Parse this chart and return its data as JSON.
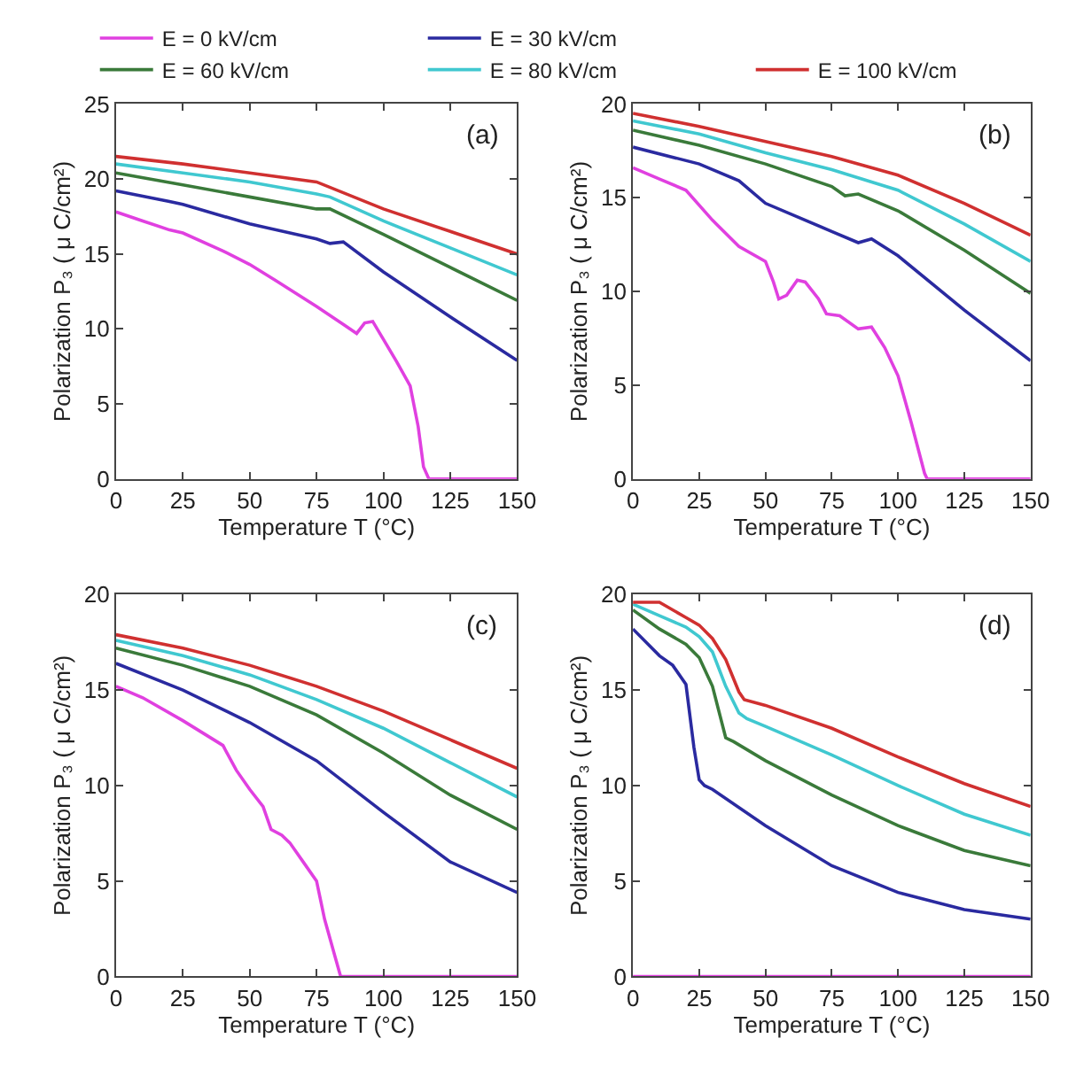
{
  "chart_data": [
    {
      "type": "line",
      "annotations": [
        "(a)"
      ],
      "xlabel": "Temperature T (°C)",
      "ylabel": "Polarization P₃ ( μ C/cm²)",
      "xlim": [
        0,
        150
      ],
      "xticks": [
        0,
        25,
        50,
        75,
        100,
        125,
        150
      ],
      "ylim": [
        0,
        25
      ],
      "yticks": [
        0,
        5,
        10,
        15,
        20,
        25
      ],
      "legend": "top",
      "marker": "none",
      "line_style": "solid",
      "series": [
        {
          "name": "E = 0 kV/cm",
          "color": "#e040e0",
          "x": [
            0,
            10,
            20,
            25,
            40,
            50,
            60,
            75,
            85,
            90,
            93,
            96,
            100,
            105,
            110,
            113,
            115,
            117,
            150
          ],
          "values": [
            17.8,
            17.2,
            16.6,
            16.4,
            15.2,
            14.3,
            13.2,
            11.5,
            10.3,
            9.7,
            10.4,
            10.5,
            9.3,
            7.8,
            6.2,
            3.5,
            0.8,
            0,
            0
          ]
        },
        {
          "name": "E = 30 kV/cm",
          "color": "#2a2aa0",
          "x": [
            0,
            20,
            25,
            50,
            75,
            80,
            85,
            100,
            125,
            150
          ],
          "values": [
            19.2,
            18.5,
            18.3,
            17.0,
            16.0,
            15.7,
            15.8,
            13.8,
            10.8,
            7.9
          ]
        },
        {
          "name": "E = 60 kV/cm",
          "color": "#3a7a3a",
          "x": [
            0,
            25,
            50,
            75,
            80,
            100,
            125,
            150
          ],
          "values": [
            20.4,
            19.6,
            18.8,
            18.0,
            18.0,
            16.3,
            14.1,
            11.9
          ]
        },
        {
          "name": "E = 80 kV/cm",
          "color": "#40c8d0",
          "x": [
            0,
            25,
            50,
            75,
            80,
            100,
            125,
            150
          ],
          "values": [
            21.0,
            20.4,
            19.8,
            19.0,
            18.8,
            17.2,
            15.4,
            13.6
          ]
        },
        {
          "name": "E = 100 kV/cm",
          "color": "#d03030",
          "x": [
            0,
            25,
            50,
            75,
            100,
            125,
            150
          ],
          "values": [
            21.5,
            21.0,
            20.4,
            19.8,
            18.0,
            16.5,
            15.0
          ]
        }
      ]
    },
    {
      "type": "line",
      "annotations": [
        "(b)"
      ],
      "xlabel": "Temperature T (°C)",
      "ylabel": "Polarization P₃ ( μ C/cm²)",
      "xlim": [
        0,
        150
      ],
      "xticks": [
        0,
        25,
        50,
        75,
        100,
        125,
        150
      ],
      "ylim": [
        0,
        20
      ],
      "yticks": [
        0,
        5,
        10,
        15,
        20
      ],
      "marker": "none",
      "line_style": "solid",
      "series": [
        {
          "color": "#e040e0",
          "x": [
            0,
            10,
            20,
            30,
            40,
            50,
            53,
            55,
            58,
            62,
            65,
            70,
            73,
            78,
            85,
            90,
            95,
            100,
            105,
            110,
            111,
            150
          ],
          "values": [
            16.6,
            16.0,
            15.4,
            13.8,
            12.4,
            11.6,
            10.5,
            9.6,
            9.8,
            10.6,
            10.5,
            9.6,
            8.8,
            8.7,
            8.0,
            8.1,
            7.0,
            5.5,
            3.0,
            0.3,
            0,
            0
          ]
        },
        {
          "color": "#2a2aa0",
          "x": [
            0,
            25,
            40,
            50,
            75,
            85,
            90,
            100,
            125,
            150
          ],
          "values": [
            17.7,
            16.8,
            15.9,
            14.7,
            13.2,
            12.6,
            12.8,
            11.9,
            9.0,
            6.3
          ]
        },
        {
          "color": "#3a7a3a",
          "x": [
            0,
            25,
            50,
            75,
            80,
            85,
            100,
            125,
            150
          ],
          "values": [
            18.6,
            17.8,
            16.8,
            15.6,
            15.1,
            15.2,
            14.3,
            12.2,
            9.9
          ]
        },
        {
          "color": "#40c8d0",
          "x": [
            0,
            25,
            50,
            75,
            100,
            125,
            150
          ],
          "values": [
            19.1,
            18.4,
            17.4,
            16.5,
            15.4,
            13.6,
            11.6
          ]
        },
        {
          "color": "#d03030",
          "x": [
            0,
            25,
            50,
            75,
            100,
            125,
            150
          ],
          "values": [
            19.5,
            18.8,
            18.0,
            17.2,
            16.2,
            14.7,
            13.0
          ]
        }
      ]
    },
    {
      "type": "line",
      "annotations": [
        "(c)"
      ],
      "xlabel": "Temperature T (°C)",
      "ylabel": "Polarization P₃ ( μ C/cm²)",
      "xlim": [
        0,
        150
      ],
      "xticks": [
        0,
        25,
        50,
        75,
        100,
        125,
        150
      ],
      "ylim": [
        0,
        20
      ],
      "yticks": [
        0,
        5,
        10,
        15,
        20
      ],
      "marker": "none",
      "line_style": "solid",
      "series": [
        {
          "color": "#e040e0",
          "x": [
            0,
            10,
            25,
            40,
            45,
            50,
            55,
            58,
            62,
            65,
            70,
            75,
            78,
            82,
            84,
            150
          ],
          "values": [
            15.2,
            14.6,
            13.4,
            12.1,
            10.8,
            9.8,
            8.9,
            7.7,
            7.4,
            7.0,
            6.0,
            5.0,
            3.0,
            1.0,
            0,
            0
          ]
        },
        {
          "color": "#2a2aa0",
          "x": [
            0,
            25,
            50,
            75,
            100,
            125,
            150
          ],
          "values": [
            16.4,
            15.0,
            13.3,
            11.3,
            8.6,
            6.0,
            4.4
          ]
        },
        {
          "color": "#3a7a3a",
          "x": [
            0,
            25,
            50,
            75,
            100,
            125,
            150
          ],
          "values": [
            17.2,
            16.3,
            15.2,
            13.7,
            11.7,
            9.5,
            7.7
          ]
        },
        {
          "color": "#40c8d0",
          "x": [
            0,
            25,
            50,
            75,
            100,
            125,
            150
          ],
          "values": [
            17.6,
            16.8,
            15.8,
            14.5,
            13.0,
            11.2,
            9.4
          ]
        },
        {
          "color": "#d03030",
          "x": [
            0,
            25,
            50,
            75,
            100,
            125,
            150
          ],
          "values": [
            17.9,
            17.2,
            16.3,
            15.2,
            13.9,
            12.4,
            10.9
          ]
        }
      ]
    },
    {
      "type": "line",
      "annotations": [
        "(d)"
      ],
      "xlabel": "Temperature T (°C)",
      "ylabel": "Polarization P₃ ( μ C/cm²)",
      "xlim": [
        0,
        150
      ],
      "xticks": [
        0,
        25,
        50,
        75,
        100,
        125,
        150
      ],
      "ylim": [
        0,
        20
      ],
      "yticks": [
        0,
        5,
        10,
        15,
        20
      ],
      "marker": "none",
      "line_style": "solid",
      "series": [
        {
          "color": "#e040e0",
          "x": [
            0,
            150
          ],
          "values": [
            0,
            0
          ]
        },
        {
          "color": "#2a2aa0",
          "x": [
            0,
            10,
            15,
            20,
            23,
            25,
            27,
            30,
            50,
            75,
            100,
            125,
            150
          ],
          "values": [
            18.2,
            16.8,
            16.3,
            15.3,
            12.0,
            10.3,
            10.0,
            9.8,
            7.9,
            5.8,
            4.4,
            3.5,
            3.0
          ]
        },
        {
          "color": "#3a7a3a",
          "x": [
            0,
            10,
            20,
            25,
            30,
            35,
            38,
            50,
            75,
            100,
            125,
            150
          ],
          "values": [
            19.2,
            18.2,
            17.4,
            16.7,
            15.2,
            12.5,
            12.3,
            11.3,
            9.5,
            7.9,
            6.6,
            5.8
          ]
        },
        {
          "color": "#40c8d0",
          "x": [
            0,
            10,
            20,
            25,
            30,
            35,
            40,
            43,
            50,
            75,
            100,
            125,
            150
          ],
          "values": [
            19.5,
            18.9,
            18.3,
            17.8,
            17.0,
            15.2,
            13.8,
            13.5,
            13.1,
            11.6,
            10.0,
            8.5,
            7.4
          ]
        },
        {
          "color": "#d03030",
          "x": [
            0,
            10,
            20,
            25,
            30,
            35,
            40,
            42,
            50,
            75,
            100,
            125,
            150
          ],
          "values": [
            19.6,
            19.6,
            18.8,
            18.4,
            17.7,
            16.6,
            14.9,
            14.5,
            14.2,
            13.0,
            11.5,
            10.1,
            8.9
          ]
        }
      ]
    }
  ]
}
